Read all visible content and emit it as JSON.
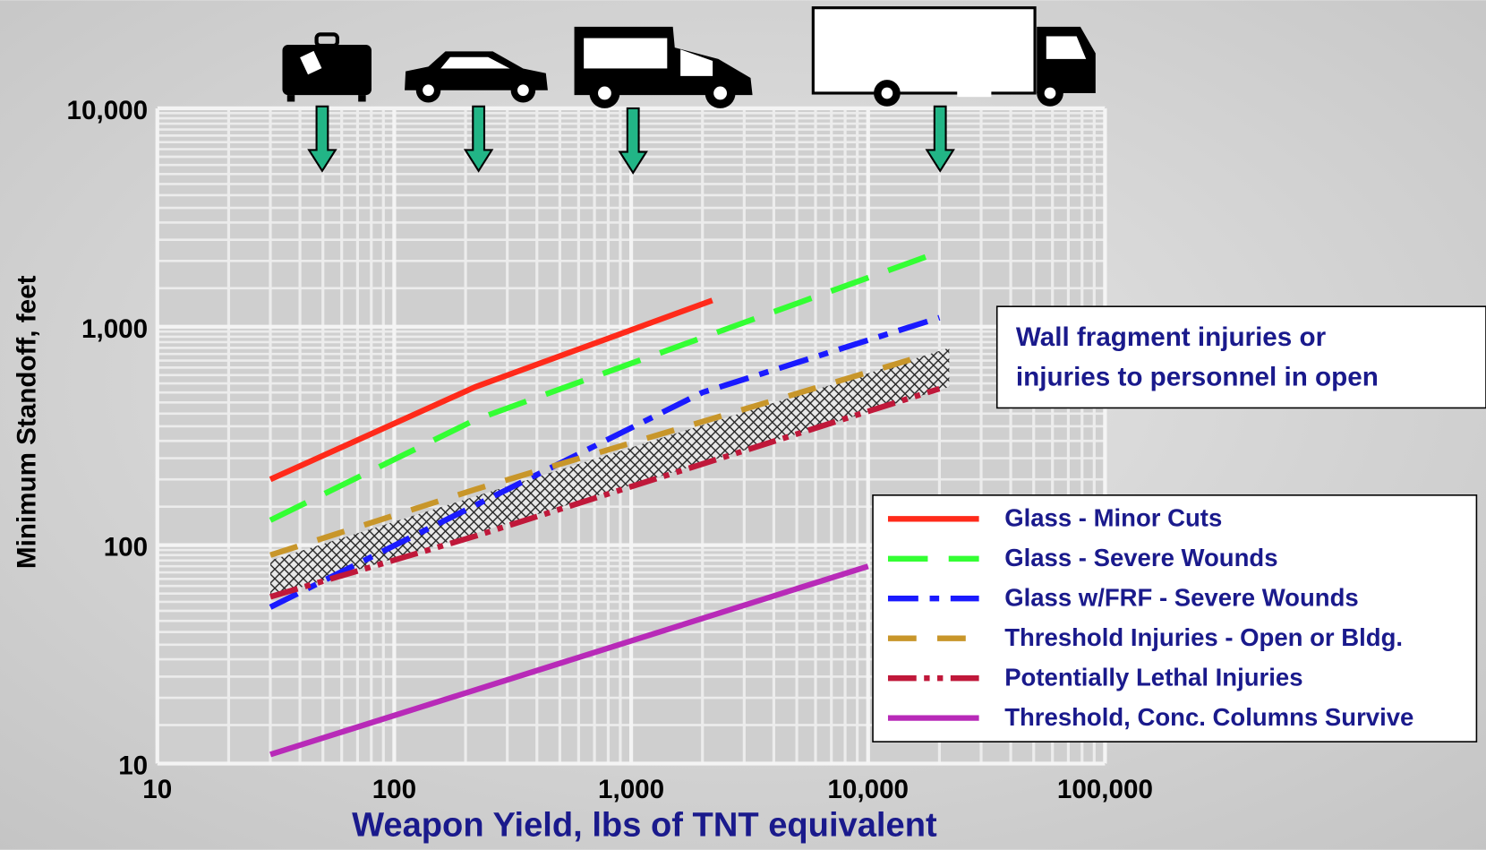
{
  "chart_data": {
    "type": "line",
    "xlabel": "Weapon Yield, lbs of TNT equivalent",
    "ylabel": "Minimum Standoff, feet",
    "annotation": [
      "Wall fragment injuries or",
      "injuries to personnel in open"
    ],
    "xscale": "log",
    "yscale": "log",
    "grid": true,
    "minor_grid": true,
    "xlim": [
      10,
      100000
    ],
    "ylim": [
      10,
      10000
    ],
    "xticks": [
      10,
      100,
      {
        "value": 1000,
        "label": "1,000"
      },
      {
        "value": 10000,
        "label": "10,000"
      },
      {
        "value": 100000,
        "label": "100,000"
      }
    ],
    "yticks": [
      10,
      100,
      {
        "value": 1000,
        "label": "1,000"
      },
      {
        "value": 10000,
        "label": "10,000"
      }
    ],
    "legend": "lower right",
    "series": [
      {
        "name": "Glass - Minor Cuts",
        "color": "#ff2a1a",
        "dash": "solid",
        "x": [
          30,
          220,
          2200
        ],
        "values": [
          200,
          530,
          1320
        ]
      },
      {
        "name": "Glass - Severe Wounds",
        "color": "#33ff33",
        "dash": "dashed",
        "x": [
          30,
          220,
          20000
        ],
        "values": [
          130,
          375,
          2200
        ]
      },
      {
        "name": "Glass w/FRF - Severe Wounds",
        "color": "#1a1aff",
        "dash": "dashdot",
        "x": [
          30,
          2000,
          20000
        ],
        "values": [
          52,
          500,
          1100
        ]
      },
      {
        "name": "Threshold Injuries - Open or Bldg.",
        "color": "#c8962a",
        "dash": "longdash",
        "x": [
          30,
          220,
          16000
        ],
        "values": [
          90,
          180,
          720
        ]
      },
      {
        "name": "Potentially Lethal Injuries",
        "color": "#c0183a",
        "dash": "dashdotdot",
        "x": [
          30,
          220,
          20000
        ],
        "values": [
          58,
          110,
          520
        ]
      },
      {
        "name": "Threshold, Conc. Columns Survive",
        "color": "#b82ab8",
        "dash": "solid",
        "x": [
          30,
          10000
        ],
        "values": [
          11,
          80
        ]
      }
    ],
    "shaded_band": {
      "x": [
        30,
        22000
      ],
      "lower": [
        58,
        530
      ],
      "upper": [
        85,
        800
      ]
    }
  }
}
